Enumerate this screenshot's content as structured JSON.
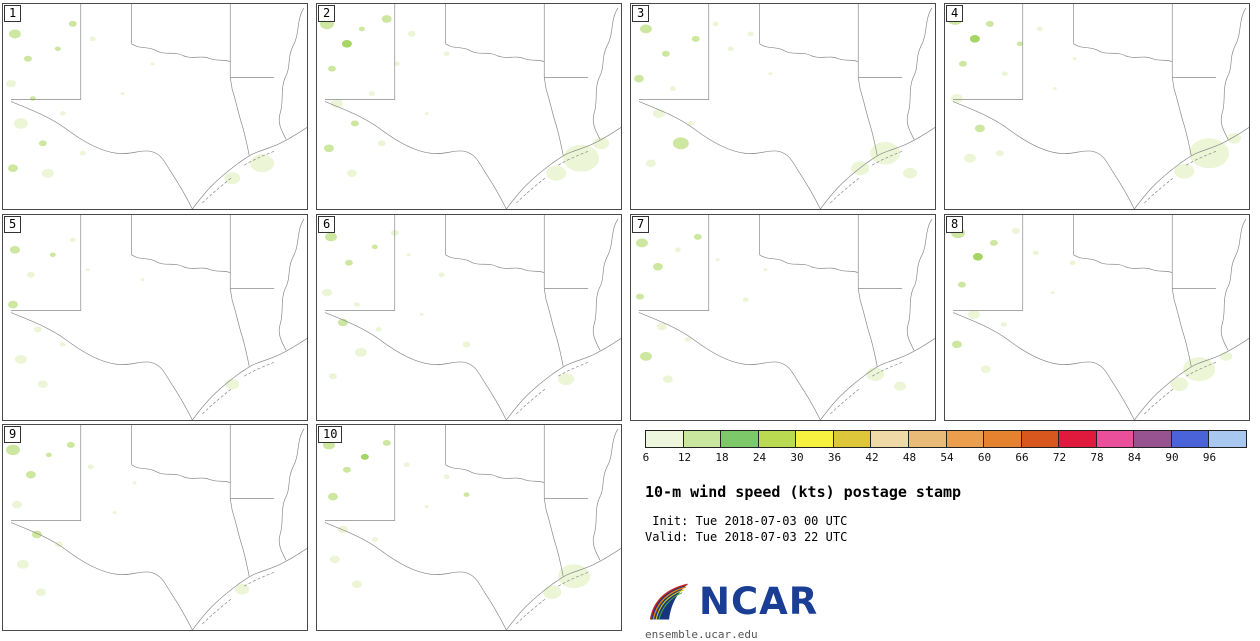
{
  "panels": [
    {
      "id": "1",
      "blobs": [
        [
          12,
          30,
          6,
          1
        ],
        [
          25,
          55,
          4,
          1
        ],
        [
          8,
          80,
          5,
          0
        ],
        [
          30,
          95,
          3,
          1
        ],
        [
          18,
          120,
          7,
          0
        ],
        [
          40,
          140,
          4,
          1
        ],
        [
          10,
          165,
          5,
          1
        ],
        [
          55,
          45,
          3,
          1
        ],
        [
          70,
          20,
          4,
          1
        ],
        [
          90,
          35,
          3,
          0
        ],
        [
          60,
          110,
          3,
          0
        ],
        [
          45,
          170,
          6,
          0
        ],
        [
          80,
          150,
          3,
          0
        ],
        [
          150,
          60,
          2,
          0
        ],
        [
          120,
          90,
          2,
          0
        ],
        [
          260,
          160,
          12,
          0
        ],
        [
          230,
          175,
          8,
          0
        ]
      ]
    },
    {
      "id": "2",
      "blobs": [
        [
          10,
          20,
          7,
          1
        ],
        [
          30,
          40,
          5,
          2
        ],
        [
          15,
          65,
          4,
          1
        ],
        [
          45,
          25,
          3,
          1
        ],
        [
          70,
          15,
          5,
          1
        ],
        [
          95,
          30,
          4,
          0
        ],
        [
          20,
          100,
          6,
          0
        ],
        [
          38,
          120,
          4,
          1
        ],
        [
          12,
          145,
          5,
          1
        ],
        [
          55,
          90,
          3,
          0
        ],
        [
          80,
          60,
          3,
          0
        ],
        [
          65,
          140,
          4,
          0
        ],
        [
          35,
          170,
          5,
          0
        ],
        [
          130,
          50,
          3,
          0
        ],
        [
          110,
          110,
          2,
          0
        ],
        [
          265,
          155,
          18,
          0
        ],
        [
          240,
          170,
          10,
          0
        ],
        [
          285,
          140,
          8,
          0
        ]
      ]
    },
    {
      "id": "3",
      "blobs": [
        [
          15,
          25,
          6,
          1
        ],
        [
          35,
          50,
          4,
          1
        ],
        [
          8,
          75,
          5,
          1
        ],
        [
          28,
          110,
          6,
          0
        ],
        [
          50,
          140,
          8,
          1
        ],
        [
          20,
          160,
          5,
          0
        ],
        [
          65,
          35,
          4,
          1
        ],
        [
          85,
          20,
          3,
          0
        ],
        [
          100,
          45,
          3,
          0
        ],
        [
          60,
          120,
          3,
          0
        ],
        [
          42,
          85,
          3,
          0
        ],
        [
          140,
          70,
          2,
          0
        ],
        [
          120,
          30,
          3,
          0
        ],
        [
          255,
          150,
          15,
          0
        ],
        [
          230,
          165,
          9,
          0
        ],
        [
          280,
          170,
          7,
          0
        ]
      ]
    },
    {
      "id": "4",
      "blobs": [
        [
          10,
          15,
          8,
          1
        ],
        [
          30,
          35,
          5,
          2
        ],
        [
          18,
          60,
          4,
          1
        ],
        [
          45,
          20,
          4,
          1
        ],
        [
          12,
          95,
          6,
          0
        ],
        [
          35,
          125,
          5,
          1
        ],
        [
          25,
          155,
          6,
          0
        ],
        [
          60,
          70,
          3,
          0
        ],
        [
          75,
          40,
          3,
          1
        ],
        [
          95,
          25,
          3,
          0
        ],
        [
          55,
          150,
          4,
          0
        ],
        [
          130,
          55,
          2,
          0
        ],
        [
          110,
          85,
          2,
          0
        ],
        [
          265,
          150,
          20,
          0
        ],
        [
          240,
          168,
          10,
          0
        ],
        [
          290,
          135,
          7,
          0
        ]
      ]
    },
    {
      "id": "5",
      "blobs": [
        [
          12,
          35,
          5,
          1
        ],
        [
          28,
          60,
          4,
          0
        ],
        [
          10,
          90,
          5,
          1
        ],
        [
          35,
          115,
          4,
          0
        ],
        [
          18,
          145,
          6,
          0
        ],
        [
          50,
          40,
          3,
          1
        ],
        [
          70,
          25,
          3,
          0
        ],
        [
          40,
          170,
          5,
          0
        ],
        [
          85,
          55,
          2,
          0
        ],
        [
          60,
          130,
          3,
          0
        ],
        [
          140,
          65,
          2,
          0
        ],
        [
          230,
          170,
          7,
          0
        ]
      ]
    },
    {
      "id": "6",
      "blobs": [
        [
          14,
          22,
          6,
          1
        ],
        [
          32,
          48,
          4,
          1
        ],
        [
          10,
          78,
          5,
          0
        ],
        [
          26,
          108,
          5,
          1
        ],
        [
          44,
          138,
          6,
          0
        ],
        [
          16,
          162,
          4,
          0
        ],
        [
          58,
          32,
          3,
          1
        ],
        [
          78,
          18,
          4,
          0
        ],
        [
          92,
          40,
          2,
          0
        ],
        [
          62,
          115,
          3,
          0
        ],
        [
          40,
          90,
          3,
          0
        ],
        [
          125,
          60,
          3,
          0
        ],
        [
          105,
          100,
          2,
          0
        ],
        [
          150,
          130,
          4,
          0
        ],
        [
          250,
          165,
          8,
          0
        ]
      ]
    },
    {
      "id": "7",
      "blobs": [
        [
          11,
          28,
          6,
          1
        ],
        [
          27,
          52,
          5,
          1
        ],
        [
          9,
          82,
          4,
          1
        ],
        [
          31,
          112,
          5,
          0
        ],
        [
          15,
          142,
          6,
          1
        ],
        [
          47,
          35,
          3,
          0
        ],
        [
          67,
          22,
          4,
          1
        ],
        [
          87,
          45,
          2,
          0
        ],
        [
          57,
          125,
          3,
          0
        ],
        [
          37,
          165,
          5,
          0
        ],
        [
          135,
          55,
          2,
          0
        ],
        [
          115,
          85,
          3,
          0
        ],
        [
          245,
          160,
          9,
          0
        ],
        [
          270,
          172,
          6,
          0
        ]
      ]
    },
    {
      "id": "8",
      "blobs": [
        [
          13,
          18,
          7,
          1
        ],
        [
          33,
          42,
          5,
          2
        ],
        [
          17,
          70,
          4,
          1
        ],
        [
          29,
          100,
          6,
          0
        ],
        [
          12,
          130,
          5,
          1
        ],
        [
          49,
          28,
          4,
          1
        ],
        [
          71,
          16,
          4,
          0
        ],
        [
          91,
          38,
          3,
          0
        ],
        [
          59,
          110,
          3,
          0
        ],
        [
          41,
          155,
          5,
          0
        ],
        [
          128,
          48,
          3,
          0
        ],
        [
          108,
          78,
          2,
          0
        ],
        [
          255,
          155,
          16,
          0
        ],
        [
          235,
          170,
          9,
          0
        ],
        [
          282,
          142,
          6,
          0
        ]
      ]
    },
    {
      "id": "9",
      "blobs": [
        [
          10,
          25,
          7,
          1
        ],
        [
          28,
          50,
          5,
          1
        ],
        [
          14,
          80,
          5,
          0
        ],
        [
          34,
          110,
          5,
          1
        ],
        [
          20,
          140,
          6,
          0
        ],
        [
          46,
          30,
          3,
          1
        ],
        [
          68,
          20,
          4,
          1
        ],
        [
          88,
          42,
          3,
          0
        ],
        [
          56,
          120,
          4,
          0
        ],
        [
          38,
          168,
          5,
          0
        ],
        [
          132,
          58,
          2,
          0
        ],
        [
          112,
          88,
          2,
          0
        ],
        [
          240,
          165,
          7,
          0
        ]
      ]
    },
    {
      "id": "10",
      "blobs": [
        [
          12,
          20,
          6,
          1
        ],
        [
          30,
          45,
          4,
          1
        ],
        [
          16,
          72,
          5,
          1
        ],
        [
          26,
          105,
          5,
          0
        ],
        [
          18,
          135,
          5,
          0
        ],
        [
          48,
          32,
          4,
          2
        ],
        [
          70,
          18,
          4,
          1
        ],
        [
          90,
          40,
          3,
          0
        ],
        [
          58,
          115,
          3,
          0
        ],
        [
          40,
          160,
          5,
          0
        ],
        [
          130,
          52,
          3,
          0
        ],
        [
          110,
          82,
          2,
          0
        ],
        [
          150,
          70,
          3,
          1
        ],
        [
          258,
          152,
          16,
          0
        ],
        [
          236,
          168,
          9,
          0
        ]
      ]
    }
  ],
  "map_style": {
    "land_color": "#ffffff",
    "border_color": "#8a8a8a",
    "blob_colors": [
      "#ecf5d6",
      "#cde7a0",
      "#a6d565"
    ]
  },
  "colorbar": {
    "tick_labels": [
      "6",
      "12",
      "18",
      "24",
      "30",
      "36",
      "42",
      "48",
      "54",
      "60",
      "66",
      "72",
      "78",
      "84",
      "90",
      "96"
    ],
    "colors": [
      "#eef7dd",
      "#c8e69e",
      "#7dc96a",
      "#bada52",
      "#f7f13f",
      "#dec63a",
      "#efd9a7",
      "#e8bc78",
      "#eb9e4e",
      "#e4822f",
      "#d8571f",
      "#e01a3c",
      "#ea4f9b",
      "#96538f",
      "#4a63d8",
      "#a8c8f0"
    ]
  },
  "legend": {
    "title": "10-m wind speed (kts) postage stamp",
    "init_line": " Init: Tue 2018-07-03 00 UTC",
    "valid_line": "Valid: Tue 2018-07-03 22 UTC",
    "logo_text": "NCAR",
    "site_url": "ensemble.ucar.edu"
  }
}
